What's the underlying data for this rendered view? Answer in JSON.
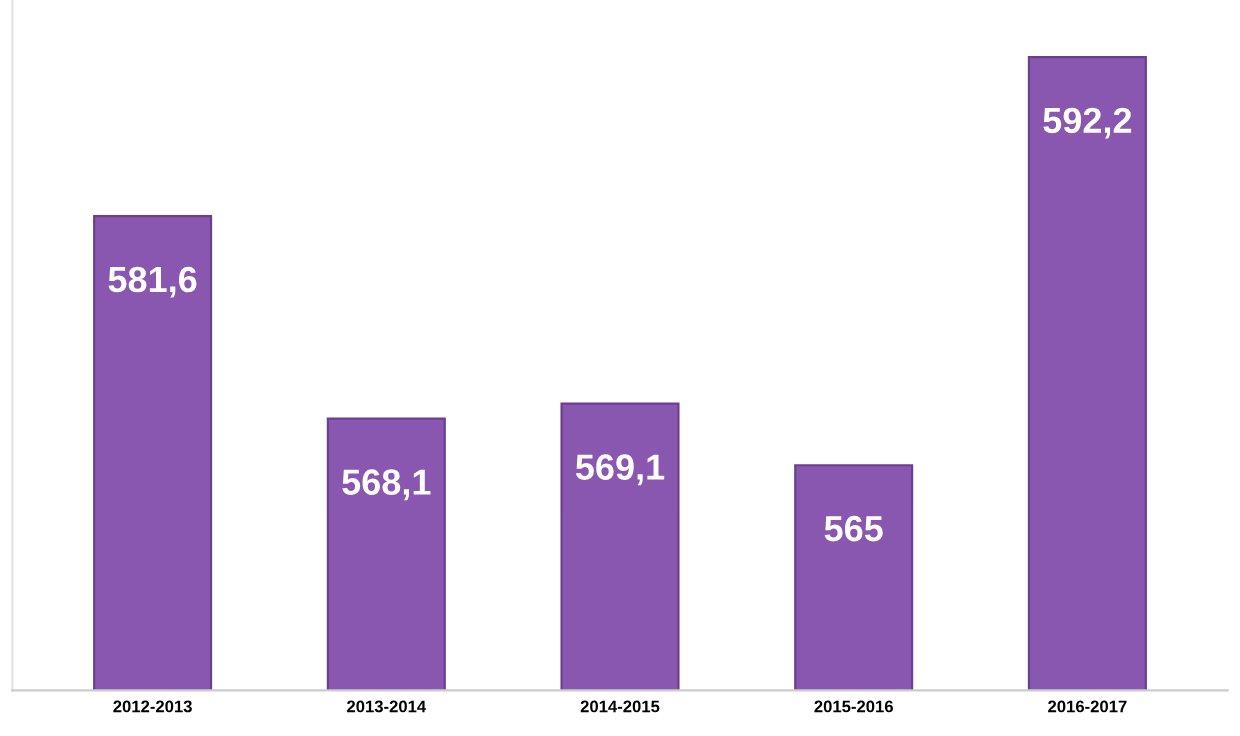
{
  "chart_data": {
    "type": "bar",
    "categories": [
      "2012-2013",
      "2013-2014",
      "2014-2015",
      "2015-2016",
      "2016-2017"
    ],
    "values": [
      581.6,
      568.1,
      569.1,
      565,
      592.2
    ],
    "value_labels": [
      "581,6",
      "568,1",
      "569,1",
      "565",
      "592,2"
    ],
    "color": "#8a57b0",
    "ylim": [
      550,
      596
    ],
    "grid": false,
    "tick_labels": "x"
  }
}
